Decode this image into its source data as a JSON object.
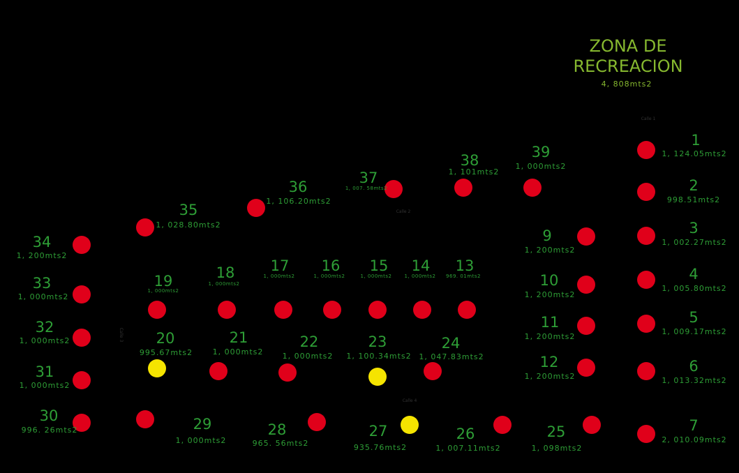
{
  "colors": {
    "background": "#000000",
    "available": "#e0001a",
    "reserved": "#f5e400",
    "lot_text": "#2e9e36",
    "zone_text": "#86b82f"
  },
  "zone": {
    "title_line1": "ZONA DE",
    "title_line2": "RECREACION",
    "area": "4, 808mts2"
  },
  "streets": {
    "calle1": "Calle 1",
    "calle2": "Calle 2",
    "calle3": "Calle 3",
    "calle4": "Calle 4"
  },
  "lots": {
    "l1": {
      "number": "1",
      "area": "1, 124.05mts2",
      "status": "available"
    },
    "l2": {
      "number": "2",
      "area": "998.51mts2",
      "status": "available"
    },
    "l3": {
      "number": "3",
      "area": "1, 002.27mts2",
      "status": "available"
    },
    "l4": {
      "number": "4",
      "area": "1, 005.80mts2",
      "status": "available"
    },
    "l5": {
      "number": "5",
      "area": "1, 009.17mts2",
      "status": "available"
    },
    "l6": {
      "number": "6",
      "area": "1, 013.32mts2",
      "status": "available"
    },
    "l7": {
      "number": "7",
      "area": "2, 010.09mts2",
      "status": "available"
    },
    "l9": {
      "number": "9",
      "area": "1, 200mts2",
      "status": "available"
    },
    "l10": {
      "number": "10",
      "area": "1, 200mts2",
      "status": "available"
    },
    "l11": {
      "number": "11",
      "area": "1, 200mts2",
      "status": "available"
    },
    "l12": {
      "number": "12",
      "area": "1, 200mts2",
      "status": "available"
    },
    "l13": {
      "number": "13",
      "area": "969. 01mts2",
      "status": "available"
    },
    "l14": {
      "number": "14",
      "area": "1, 000mts2",
      "status": "available"
    },
    "l15": {
      "number": "15",
      "area": "1, 000mts2",
      "status": "available"
    },
    "l16": {
      "number": "16",
      "area": "1, 000mts2",
      "status": "available"
    },
    "l17": {
      "number": "17",
      "area": "1, 000mts2",
      "status": "available"
    },
    "l18": {
      "number": "18",
      "area": "1, 000mts2",
      "status": "available"
    },
    "l19": {
      "number": "19",
      "area": "1, 000mts2",
      "status": "available"
    },
    "l20": {
      "number": "20",
      "area": "995.67mts2",
      "status": "reserved"
    },
    "l21": {
      "number": "21",
      "area": "1, 000mts2",
      "status": "available"
    },
    "l22": {
      "number": "22",
      "area": "1, 000mts2",
      "status": "available"
    },
    "l23": {
      "number": "23",
      "area": "1, 100.34mts2",
      "status": "reserved"
    },
    "l24": {
      "number": "24",
      "area": "1, 047.83mts2",
      "status": "available"
    },
    "l25": {
      "number": "25",
      "area": "1, 098mts2",
      "status": "available"
    },
    "l26": {
      "number": "26",
      "area": "1, 007.11mts2",
      "status": "available"
    },
    "l27": {
      "number": "27",
      "area": "935.76mts2",
      "status": "reserved"
    },
    "l28": {
      "number": "28",
      "area": "965. 56mts2",
      "status": "available"
    },
    "l29": {
      "number": "29",
      "area": "1, 000mts2",
      "status": "available"
    },
    "l30": {
      "number": "30",
      "area": "996. 26mts2",
      "status": "available"
    },
    "l31": {
      "number": "31",
      "area": "1, 000mts2",
      "status": "available"
    },
    "l32": {
      "number": "32",
      "area": "1, 000mts2",
      "status": "available"
    },
    "l33": {
      "number": "33",
      "area": "1, 000mts2",
      "status": "available"
    },
    "l34": {
      "number": "34",
      "area": "1, 200mts2",
      "status": "available"
    },
    "l35": {
      "number": "35",
      "area": "1, 028.80mts2",
      "status": "available"
    },
    "l36": {
      "number": "36",
      "area": "1, 106.20mts2",
      "status": "available"
    },
    "l37": {
      "number": "37",
      "area": "1, 007. 58mts2",
      "status": "available"
    },
    "l38": {
      "number": "38",
      "area": "1, 101mts2",
      "status": "available"
    },
    "l39": {
      "number": "39",
      "area": "1, 000mts2",
      "status": "available"
    }
  }
}
